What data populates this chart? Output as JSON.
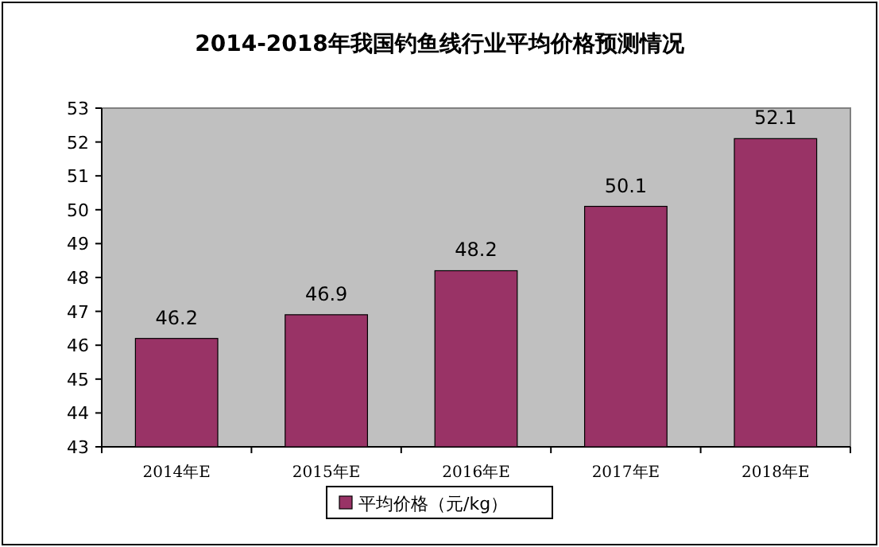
{
  "chart_data": {
    "type": "bar",
    "title": "2014-2018年我国钓鱼线行业平均价格预测情况",
    "categories": [
      "2014年E",
      "2015年E",
      "2016年E",
      "2017年E",
      "2018年E"
    ],
    "series": [
      {
        "name": "平均价格（元/kg）",
        "color": "#993366",
        "values": [
          46.2,
          46.9,
          48.2,
          50.1,
          52.1
        ]
      }
    ],
    "ylim": [
      43,
      53
    ],
    "yticks": [
      43,
      44,
      45,
      46,
      47,
      48,
      49,
      50,
      51,
      52,
      53
    ],
    "data_labels": true,
    "legend": "bottom",
    "grid": false
  }
}
